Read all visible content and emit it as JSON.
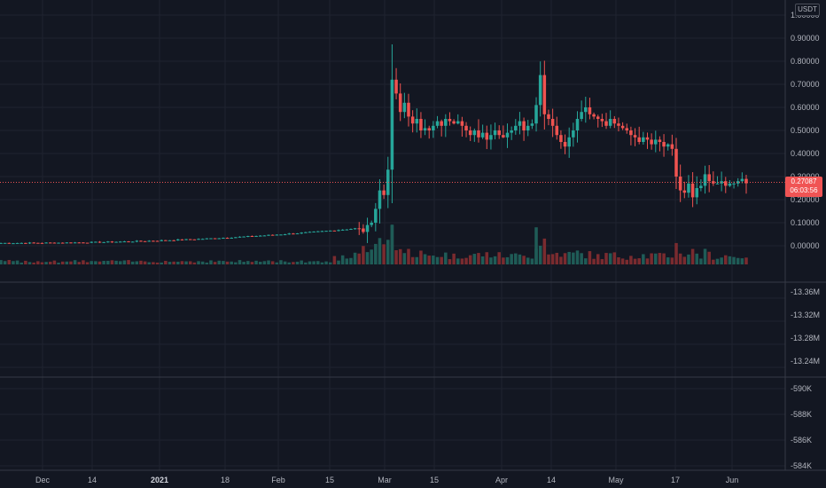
{
  "price_axis": {
    "currency": "USDT",
    "ticks": [
      "1.00000",
      "0.90000",
      "0.80000",
      "0.70000",
      "0.60000",
      "0.50000",
      "0.40000",
      "0.30000",
      "0.20000",
      "0.10000",
      "0.00000"
    ],
    "last_price": "0.27087",
    "countdown": "06:03:56"
  },
  "pane2_axis": {
    "ticks": [
      "-13.36M",
      "-13.32M",
      "-13.28M",
      "-13.24M"
    ]
  },
  "pane3_axis": {
    "ticks": [
      "-590K",
      "-588K",
      "-586K",
      "-584K"
    ]
  },
  "time_axis": {
    "labels": [
      {
        "text": "Dec",
        "bold": false
      },
      {
        "text": "14",
        "bold": false
      },
      {
        "text": "2021",
        "bold": true
      },
      {
        "text": "18",
        "bold": false
      },
      {
        "text": "Feb",
        "bold": false
      },
      {
        "text": "15",
        "bold": false
      },
      {
        "text": "Mar",
        "bold": false
      },
      {
        "text": "15",
        "bold": false
      },
      {
        "text": "Apr",
        "bold": false
      },
      {
        "text": "14",
        "bold": false
      },
      {
        "text": "May",
        "bold": false
      },
      {
        "text": "17",
        "bold": false
      },
      {
        "text": "Jun",
        "bold": false
      }
    ]
  },
  "colors": {
    "up": "#26a69a",
    "down": "#ef5350",
    "background": "#131722",
    "grid": "#1f2330"
  },
  "chart_data": {
    "type": "candlestick",
    "timeframe": "daily",
    "y_range": [
      -0.08,
      1.05
    ],
    "last_price": 0.27087,
    "segments": [
      {
        "period": "Nov 28 - Feb 22",
        "days": 87,
        "from_price": 0.012,
        "to_price": 0.075
      },
      {
        "period": "Feb 23 - Mar 09",
        "closes": [
          0.075,
          0.06,
          0.09,
          0.1,
          0.16,
          0.24,
          0.22,
          0.33,
          0.72
        ]
      },
      {
        "period": "Mar 10 - Apr 12",
        "approx_range": [
          0.46,
          0.66
        ]
      },
      {
        "period": "Apr 13 - Apr 15",
        "closes": [
          0.61,
          0.74,
          0.57
        ]
      },
      {
        "period": "Apr 16 - May 16",
        "approx_range": [
          0.42,
          0.6
        ]
      },
      {
        "period": "May 17 - Jun 03",
        "approx_range": [
          0.21,
          0.31
        ],
        "last_close": 0.27087
      }
    ],
    "volume_peaks": [
      {
        "date": "Mar 09",
        "relative": 1.0
      },
      {
        "date": "Apr 14",
        "relative": 0.95
      },
      {
        "date": "Feb 22",
        "relative": 0.3
      }
    ],
    "indicator_panes": [
      {
        "axis_ticks": [
          "-13.36M",
          "-13.32M",
          "-13.28M",
          "-13.24M"
        ],
        "series": "empty"
      },
      {
        "axis_ticks": [
          "-590K",
          "-588K",
          "-586K",
          "-584K"
        ],
        "series": "empty"
      }
    ]
  }
}
